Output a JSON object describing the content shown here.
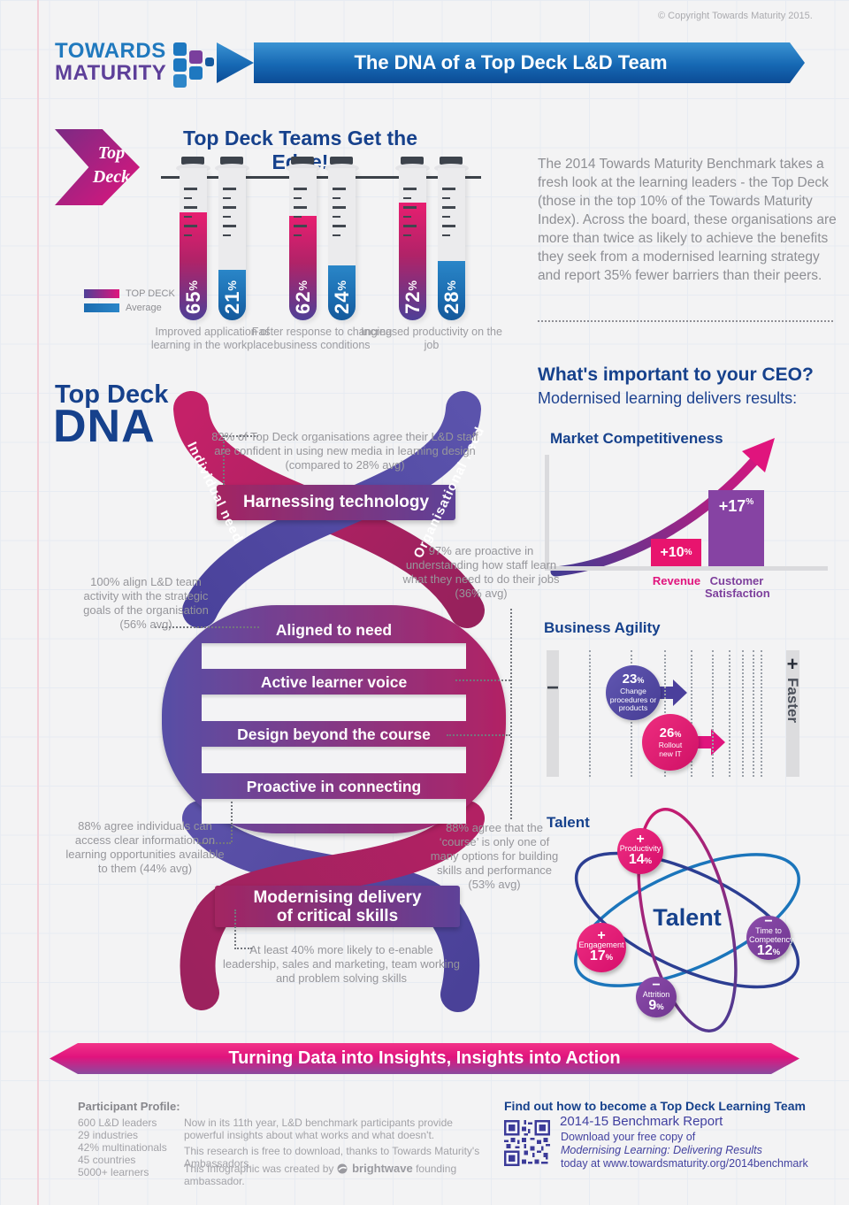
{
  "meta": {
    "copyright": "© Copyright Towards Maturity 2015."
  },
  "logo": {
    "word1": "TOWARDS",
    "word2": "MATURITY"
  },
  "header": {
    "title": "The DNA of a Top Deck L&D Team"
  },
  "edge": {
    "badge_line1": "Top",
    "badge_line2": "Deck",
    "title": "Top Deck Teams Get the Edge!",
    "legend": {
      "top_deck": "TOP DECK",
      "average": "Average"
    },
    "pct": "%",
    "pairs": [
      {
        "top_deck": 65,
        "average": 21,
        "label": "Improved application of learning in the workplace"
      },
      {
        "top_deck": 62,
        "average": 24,
        "label": "Faster response to changing business conditions"
      },
      {
        "top_deck": 72,
        "average": 28,
        "label": "Increased productivity on the job"
      }
    ]
  },
  "intro": {
    "text": "The 2014 Towards Maturity Benchmark takes a fresh look at the learning leaders - the Top Deck (those in the top 10% of the Towards Maturity Index). Across the board, these organisations are more than twice as likely to achieve the benefits they seek from a modernised learning strategy and report 35% fewer barriers than their peers."
  },
  "dna": {
    "title_line1": "Top Deck",
    "title_line2": "DNA",
    "strand_left": "Individual need",
    "strand_right": "Organisational need",
    "bands": {
      "b1": "Harnessing technology",
      "b2": "Aligned to need",
      "b3": "Active learner voice",
      "b4": "Design beyond the course",
      "b5": "Proactive in connecting",
      "b6a": "Modernising delivery",
      "b6b": "of critical skills"
    },
    "notes": {
      "n82": "82% of Top Deck organisations agree their L&D staff are confident in using new media in learning design (compared to 28% avg)",
      "n100": "100% align L&D team activity with the strategic goals of the organisation (56% avg)",
      "n97": "97% are proactive in understanding how staff learn what they need to do their jobs (36% avg)",
      "n88a": "88% agree individuals can access clear information on learning opportunities available to them (44% avg)",
      "n88b": "88% agree that the ‘course’ is only one of many options for building skills and performance (53% avg)",
      "n40": "At least 40% more likely to e-enable leadership, sales and marketing, team working and problem solving skills"
    }
  },
  "ceo": {
    "title": "What's important to your CEO?",
    "subtitle": "Modernised learning delivers results:",
    "market": {
      "title": "Market Competitiveness",
      "revenue_value": "+10",
      "revenue_label": "Revenue",
      "customer_value": "+17",
      "customer_label": "Customer Satisfaction"
    },
    "agility": {
      "title": "Business Agility",
      "minus": "−",
      "plus": "+",
      "faster": "Faster",
      "bubble1": {
        "value": "23",
        "label1": "Change",
        "label2": "procedures or",
        "label3": "products"
      },
      "bubble2": {
        "value": "26",
        "label1": "Rollout",
        "label2": "new IT"
      }
    },
    "talent": {
      "title": "Talent",
      "center": "Talent",
      "nodes": [
        {
          "sign": "+",
          "label": "Productivity",
          "value": "14"
        },
        {
          "sign": "+",
          "label": "Engagement",
          "value": "17"
        },
        {
          "sign": "−",
          "label": "Time to Competency",
          "value": "12"
        },
        {
          "sign": "−",
          "label": "Attrition",
          "value": "9"
        }
      ]
    }
  },
  "ribbon": {
    "text": "Turning Data into Insights, Insights into Action"
  },
  "footer": {
    "profile_title": "Participant Profile:",
    "profile_items": [
      "600 L&D leaders",
      "29 industries",
      "42% multinationals",
      "45 countries",
      "5000+ learners"
    ],
    "note1": "Now in its 11th year, L&D benchmark participants provide powerful insights about what works and what doesn't.",
    "note2": "This research is free to download, thanks to Towards Maturity's Ambassadors.",
    "note3_pre": "This Infographic was created by",
    "brand": "brightwave",
    "note3_post": "founding ambassador.",
    "cta_title": "Find out how to become a Top Deck Learning Team",
    "report_title": "2014-15 Benchmark Report",
    "report_line1": "Download your free copy of",
    "report_line2": "Modernising Learning: Delivering Results",
    "report_line3": "today at www.towardsmaturity.org/2014benchmark"
  },
  "chart_data": [
    {
      "type": "bar",
      "title": "Top Deck Teams Get the Edge!",
      "categories": [
        "Improved application of learning in the workplace",
        "Faster response to changing business conditions",
        "Increased productivity on the job"
      ],
      "series": [
        {
          "name": "TOP DECK",
          "values": [
            65,
            62,
            72
          ]
        },
        {
          "name": "Average",
          "values": [
            21,
            24,
            28
          ]
        }
      ],
      "unit": "%",
      "legend_position": "left",
      "ylim": [
        0,
        100
      ]
    },
    {
      "type": "bar",
      "title": "Market Competitiveness",
      "categories": [
        "Revenue",
        "Customer Satisfaction"
      ],
      "values": [
        10,
        17
      ],
      "unit": "% improvement",
      "annotation": "upward swoosh arrow"
    },
    {
      "type": "scatter",
      "title": "Business Agility",
      "points": [
        {
          "label": "Change procedures or products",
          "value": 23
        },
        {
          "label": "Rollout new IT",
          "value": 26
        }
      ],
      "xlabel": "− to + Faster",
      "unit": "%"
    },
    {
      "type": "scatter",
      "title": "Talent",
      "points": [
        {
          "label": "Productivity",
          "value": 14,
          "direction": "+"
        },
        {
          "label": "Engagement",
          "value": 17,
          "direction": "+"
        },
        {
          "label": "Time to Competency",
          "value": 12,
          "direction": "−"
        },
        {
          "label": "Attrition",
          "value": 9,
          "direction": "−"
        }
      ],
      "unit": "%"
    }
  ]
}
